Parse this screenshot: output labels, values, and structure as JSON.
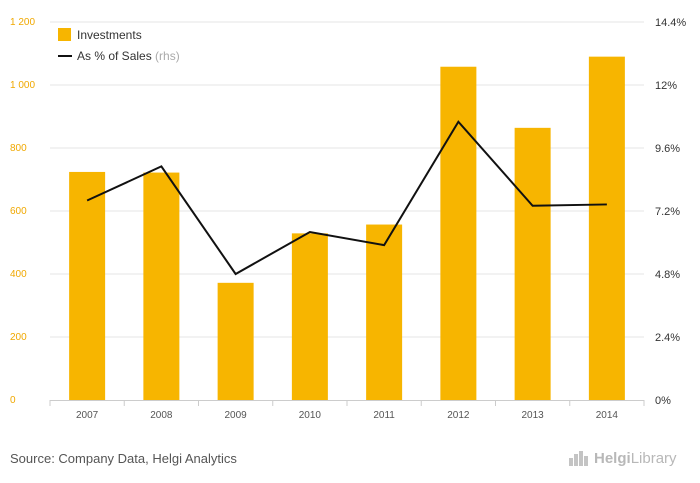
{
  "chart_data": {
    "type": "bar",
    "categories": [
      "2007",
      "2008",
      "2009",
      "2010",
      "2011",
      "2012",
      "2013",
      "2014"
    ],
    "series": [
      {
        "name": "Investments",
        "type": "bar",
        "axis": "left",
        "values": [
          724,
          722,
          372,
          529,
          557,
          1058,
          864,
          1090
        ],
        "color": "#f7b500"
      },
      {
        "name": "As % of Sales",
        "name_suffix": "(rhs)",
        "type": "line",
        "axis": "right",
        "values": [
          7.6,
          8.9,
          4.8,
          6.4,
          5.9,
          10.6,
          7.4,
          7.45
        ],
        "color": "#111111"
      }
    ],
    "y_left": {
      "ylim": [
        0,
        1200
      ],
      "ticks": [
        0,
        200,
        400,
        600,
        800,
        1000,
        1200
      ],
      "tick_labels": [
        "0",
        "200",
        "400",
        "600",
        "800",
        "1 000",
        "1 200"
      ],
      "color": "#f0a800"
    },
    "y_right": {
      "ylim": [
        0,
        14.4
      ],
      "ticks": [
        0,
        2.4,
        4.8,
        7.2,
        9.6,
        12,
        14.4
      ],
      "tick_labels": [
        "0%",
        "2.4%",
        "4.8%",
        "7.2%",
        "9.6%",
        "12%",
        "14.4%"
      ]
    },
    "legend": {
      "placement": "top-left"
    },
    "grid": true
  },
  "footer": {
    "source": "Source: Company Data, Helgi Analytics",
    "logo_bold": "Helgi",
    "logo_rest": "Library"
  }
}
